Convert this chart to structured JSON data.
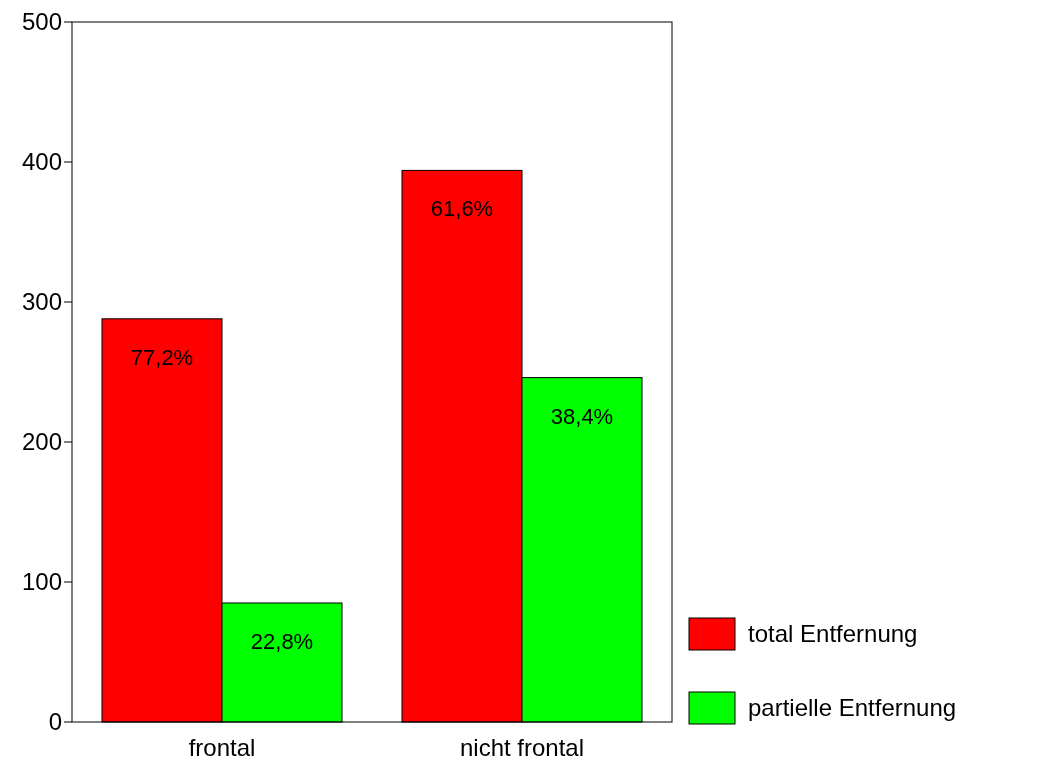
{
  "chart_data": {
    "type": "bar",
    "categories": [
      "frontal",
      "nicht frontal"
    ],
    "series": [
      {
        "name": "total Entfernung",
        "color": "#ff0000",
        "values": [
          288,
          394
        ]
      },
      {
        "name": "partielle Entfernung",
        "color": "#00ff00",
        "values": [
          85,
          246
        ]
      }
    ],
    "annotations": [
      {
        "text": "77,2%",
        "x": "frontal",
        "y": 288
      },
      {
        "text": "22,8%",
        "x": "frontal",
        "y": 85
      },
      {
        "text": "61,6%",
        "x": "nicht frontal",
        "y": 394
      },
      {
        "text": "38,4%",
        "x": "nicht frontal",
        "y": 246
      }
    ],
    "ylim": [
      0,
      500
    ],
    "yticks": [
      0,
      100,
      200,
      300,
      400,
      500
    ],
    "legend": "bottom right",
    "grid": false
  }
}
